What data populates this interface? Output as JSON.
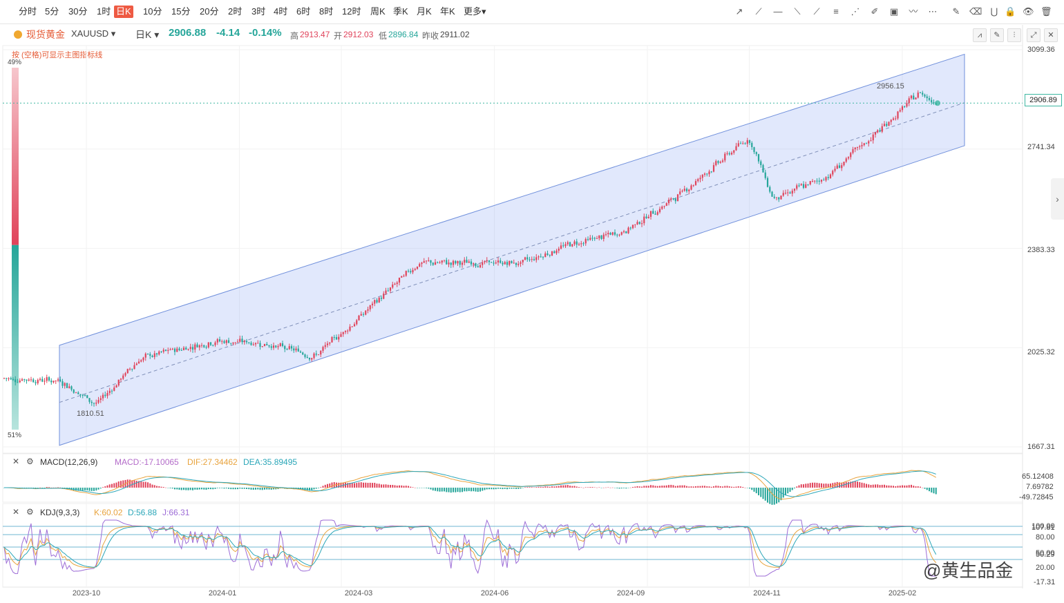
{
  "toolbar": {
    "timeframes": [
      "分时",
      "5分",
      "30分",
      "1时",
      "日K",
      "10分",
      "15分",
      "20分",
      "2时",
      "3时",
      "4时",
      "6时",
      "8时",
      "12时",
      "周K",
      "季K",
      "月K",
      "年K",
      "更多▾"
    ],
    "active_index": 4,
    "draw_tools": [
      "trend-line",
      "ray-line",
      "horizontal-line",
      "segment-line",
      "extended-line",
      "fib-retracement",
      "fan",
      "brush",
      "picture",
      "wave",
      "more",
      "note",
      "eraser",
      "magnet",
      "lock",
      "eye",
      "trash"
    ]
  },
  "symbol": {
    "name": "现货黄金",
    "code": "XAUUSD ▾",
    "period": "日K ▾",
    "price": "2906.88",
    "change": "-4.14",
    "change_pct": "-0.14%",
    "high_label": "高",
    "high": "2913.47",
    "open_label": "开",
    "open": "2912.03",
    "low_label": "低",
    "low": "2896.84",
    "prev_label": "昨收",
    "prev": "2911.02",
    "accent_up": "#e0435a",
    "accent_down": "#26a69a"
  },
  "hint": "按 (空格)可显示主图指标线",
  "sentiment": {
    "top_pct": "49%",
    "bottom_pct": "51%",
    "bull": 0.49,
    "bear": 0.51
  },
  "price_axis": [
    "3099.36",
    "2906.89",
    "2741.34",
    "2383.33",
    "2025.32",
    "1667.31"
  ],
  "current_price_tag": "2906.89",
  "annotations": {
    "high_label": "2956.15",
    "low_label": "1810.51"
  },
  "macd": {
    "title": "MACD(12,26,9)",
    "macd_label": "MACD:-17.10065",
    "dif_label": "DIF:27.34462",
    "dea_label": "DEA:35.89495",
    "axis": [
      "65.12408",
      "7.69782",
      "-49.72845"
    ]
  },
  "kdj": {
    "title": "KDJ(9,3,3)",
    "k_label": "K:60.02",
    "d_label": "D:56.88",
    "j_label": "J:66.31",
    "axis": [
      "100.00",
      "107.81",
      "80.00",
      "50.00",
      "50.29",
      "20.00",
      "-17.31"
    ]
  },
  "x_axis": [
    "2023-10",
    "2024-01",
    "2024-03",
    "2024-06",
    "2024-09",
    "2024-11",
    "2025-02"
  ],
  "watermark": "@黄生品金",
  "chart_data": {
    "type": "candlestick",
    "ylim": [
      1667.31,
      3099.36
    ],
    "date_range": [
      "2023-08",
      "2025-02"
    ],
    "key_points": [
      {
        "date": "2023-10-06",
        "value": 1810.51,
        "label": "low"
      },
      {
        "date": "2025-02-11",
        "value": 2956.15,
        "label": "high"
      },
      {
        "date": "2025-02-19",
        "value": 2906.88,
        "label": "last"
      }
    ],
    "channel": {
      "upper": [
        [
          "2023-10",
          2065
        ],
        [
          "2025-03",
          3070
        ]
      ],
      "middle": [
        [
          "2023-10",
          1860
        ],
        [
          "2025-03",
          2895
        ]
      ],
      "lower": [
        [
          "2023-10",
          1705
        ],
        [
          "2025-03",
          2740
        ]
      ]
    },
    "close_trend": [
      [
        "2023-08",
        1915
      ],
      [
        "2023-09",
        1905
      ],
      [
        "2023-10-06",
        1820
      ],
      [
        "2023-10-31",
        1985
      ],
      [
        "2023-12",
        2050
      ],
      [
        "2024-01",
        2040
      ],
      [
        "2024-02",
        1995
      ],
      [
        "2024-03",
        2160
      ],
      [
        "2024-04",
        2330
      ],
      [
        "2024-05",
        2330
      ],
      [
        "2024-06",
        2330
      ],
      [
        "2024-07",
        2400
      ],
      [
        "2024-08",
        2440
      ],
      [
        "2024-09",
        2560
      ],
      [
        "2024-10-30",
        2785
      ],
      [
        "2024-11-14",
        2560
      ],
      [
        "2024-12",
        2640
      ],
      [
        "2025-01",
        2800
      ],
      [
        "2025-02-11",
        2950
      ],
      [
        "2025-02-19",
        2906.88
      ]
    ]
  }
}
